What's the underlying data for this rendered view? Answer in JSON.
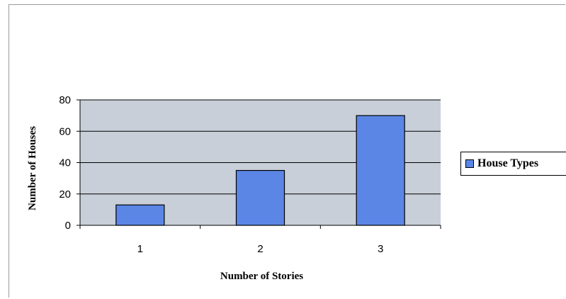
{
  "chart_data": {
    "type": "bar",
    "categories": [
      "1",
      "2",
      "3"
    ],
    "series": [
      {
        "name": "House Types",
        "values": [
          13,
          35,
          70
        ]
      }
    ],
    "title": "",
    "xlabel": "Number of Stories",
    "ylabel": "Number of Houses",
    "ylim": [
      0,
      80
    ],
    "yticks": [
      "0",
      "20",
      "40",
      "60",
      "80"
    ],
    "grid": true,
    "legend": "right",
    "colors": {
      "bar_fill": "#5b86e6",
      "bar_stroke": "#000000",
      "plot_background": "#c8cfd8",
      "gridline": "#000000"
    }
  }
}
